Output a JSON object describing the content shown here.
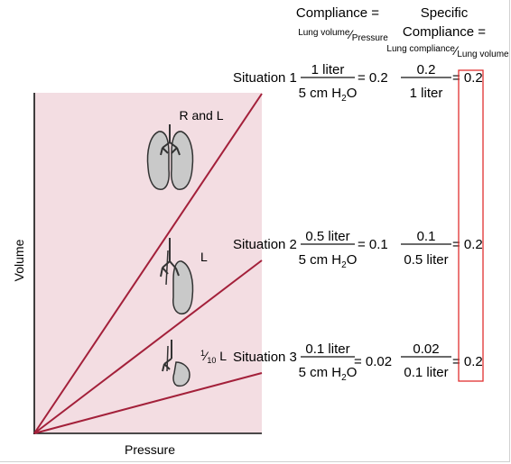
{
  "header": {
    "compliance_title": "Compliance =",
    "compliance_num": "Lung volume",
    "compliance_den": "Pressure",
    "specific_title_1": "Specific",
    "specific_title_2": "Compliance =",
    "specific_num": "Lung compliance",
    "specific_den": "Lung volume"
  },
  "axes": {
    "xlabel": "Pressure",
    "ylabel": "Volume"
  },
  "situations": [
    {
      "label": "Situation 1",
      "lung_label": "R and L",
      "c_num": "1 liter",
      "c_den": "5 cm H",
      "c_den_sub": "2",
      "c_den_tail": "O",
      "c_result": "= 0.2",
      "s_num": "0.2",
      "s_den": "1 liter",
      "s_result": "= 0.2"
    },
    {
      "label": "Situation 2",
      "lung_label": "L",
      "c_num": "0.5 liter",
      "c_den": "5 cm H",
      "c_den_sub": "2",
      "c_den_tail": "O",
      "c_result": "= 0.1",
      "s_num": "0.1",
      "s_den": "0.5 liter",
      "s_result": "= 0.2"
    },
    {
      "label": "Situation 3",
      "lung_label_sup": "1",
      "lung_label_sub": "10",
      "lung_label_tail": " L",
      "c_num": "0.1 liter",
      "c_den": "5 cm H",
      "c_den_sub": "2",
      "c_den_tail": "O",
      "c_result": "= 0.02",
      "s_num": "0.02",
      "s_den": "0.1 liter",
      "s_result": "= 0.2"
    }
  ],
  "line_slopes": [
    0.2,
    0.1,
    0.02
  ],
  "colors": {
    "plot_bg": "#f3dde2",
    "line": "#a3203a",
    "box": "#e03030",
    "lung_fill": "#c9c9c9"
  }
}
